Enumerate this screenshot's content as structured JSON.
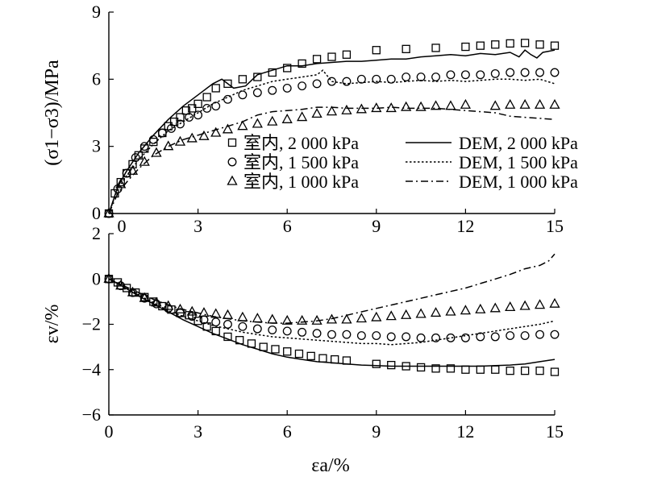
{
  "chart_data": [
    {
      "panel": "top",
      "type": "line",
      "ylabel": "(σ1−σ3)/MPa",
      "xlim": [
        0,
        15
      ],
      "ylim": [
        0,
        9
      ],
      "x_ticks": [
        0,
        3,
        6,
        9,
        12,
        15
      ],
      "x_tick_labels": [
        "0",
        "3",
        "6",
        "9",
        "12",
        "15"
      ],
      "y_ticks": [
        0,
        3,
        6,
        9
      ],
      "y_tick_labels": [
        "0",
        "3",
        "6",
        "9"
      ],
      "legend": [
        {
          "label": "室内, 2 000 kPa",
          "marker": "square"
        },
        {
          "label": "室内, 1 500 kPa",
          "marker": "circle"
        },
        {
          "label": "室内, 1 000 kPa",
          "marker": "triangle"
        },
        {
          "label": "DEM, 2 000 kPa",
          "line": "solid"
        },
        {
          "label": "DEM, 1 500 kPa",
          "line": "dotted"
        },
        {
          "label": "DEM, 1 000 kPa",
          "line": "dashdot"
        }
      ],
      "series": [
        {
          "name": "室内, 2 000 kPa",
          "kind": "marker",
          "marker": "square",
          "x": [
            0,
            0.2,
            0.4,
            0.6,
            0.8,
            1.0,
            1.2,
            1.5,
            1.8,
            2.0,
            2.2,
            2.4,
            2.6,
            2.8,
            3.0,
            3.3,
            3.6,
            4.0,
            4.5,
            5.0,
            5.5,
            6.0,
            6.5,
            7.0,
            7.5,
            8.0,
            9.0,
            10.0,
            11.0,
            12.0,
            12.5,
            13.0,
            13.5,
            14.0,
            14.5,
            15.0
          ],
          "y": [
            0,
            0.9,
            1.4,
            1.8,
            2.2,
            2.6,
            2.9,
            3.2,
            3.6,
            3.9,
            4.1,
            4.3,
            4.6,
            4.7,
            4.9,
            5.2,
            5.6,
            5.8,
            6.0,
            6.1,
            6.3,
            6.5,
            6.7,
            6.9,
            7.0,
            7.1,
            7.3,
            7.35,
            7.4,
            7.45,
            7.5,
            7.55,
            7.6,
            7.62,
            7.55,
            7.5
          ]
        },
        {
          "name": "室内, 1 500 kPa",
          "kind": "marker",
          "marker": "circle",
          "x": [
            0,
            0.3,
            0.6,
            0.9,
            1.2,
            1.5,
            1.8,
            2.1,
            2.4,
            2.7,
            3.0,
            3.3,
            3.6,
            4.0,
            4.5,
            5.0,
            5.5,
            6.0,
            6.5,
            7.0,
            7.5,
            8.0,
            8.5,
            9.0,
            9.5,
            10.0,
            10.5,
            11.0,
            11.5,
            12.0,
            12.5,
            13.0,
            13.5,
            14.0,
            14.5,
            15.0
          ],
          "y": [
            0,
            1.1,
            1.8,
            2.5,
            3.0,
            3.3,
            3.6,
            3.8,
            4.0,
            4.3,
            4.4,
            4.7,
            4.8,
            5.1,
            5.3,
            5.4,
            5.5,
            5.6,
            5.7,
            5.8,
            5.9,
            5.9,
            6.0,
            6.0,
            6.0,
            6.1,
            6.1,
            6.1,
            6.2,
            6.2,
            6.2,
            6.25,
            6.3,
            6.3,
            6.3,
            6.3
          ]
        },
        {
          "name": "室内, 1 000 kPa",
          "kind": "marker",
          "marker": "triangle",
          "x": [
            0,
            0.4,
            0.8,
            1.2,
            1.6,
            2.0,
            2.4,
            2.8,
            3.2,
            3.6,
            4.0,
            4.5,
            5.0,
            5.5,
            6.0,
            6.5,
            7.0,
            7.5,
            8.0,
            8.5,
            9.0,
            9.5,
            10.0,
            10.5,
            11.0,
            11.5,
            12.0,
            13.0,
            13.5,
            14.0,
            14.5,
            15.0
          ],
          "y": [
            0,
            1.3,
            1.9,
            2.3,
            2.7,
            3.0,
            3.2,
            3.35,
            3.45,
            3.6,
            3.75,
            3.9,
            4.0,
            4.1,
            4.2,
            4.3,
            4.45,
            4.55,
            4.6,
            4.65,
            4.7,
            4.7,
            4.75,
            4.75,
            4.8,
            4.8,
            4.85,
            4.8,
            4.85,
            4.85,
            4.85,
            4.85
          ]
        },
        {
          "name": "DEM, 2 000 kPa",
          "kind": "line",
          "dash": "solid",
          "x": [
            0,
            0.3,
            0.6,
            1.0,
            1.5,
            2.0,
            2.5,
            3.0,
            3.5,
            3.8,
            4.2,
            4.6,
            5.0,
            5.5,
            6.0,
            6.5,
            7.0,
            7.5,
            8.0,
            8.5,
            9.0,
            9.5,
            10.0,
            10.5,
            11.0,
            11.5,
            12.0,
            12.5,
            13.0,
            13.5,
            13.8,
            14.0,
            14.2,
            14.4,
            14.6,
            14.8,
            15.0
          ],
          "y": [
            0,
            1.2,
            1.9,
            2.7,
            3.5,
            4.2,
            4.8,
            5.3,
            5.8,
            6.0,
            5.6,
            5.7,
            6.2,
            6.4,
            6.6,
            6.6,
            6.7,
            6.75,
            6.8,
            6.8,
            6.85,
            6.9,
            6.9,
            7.0,
            7.05,
            7.1,
            7.05,
            7.15,
            7.1,
            7.2,
            7.0,
            7.3,
            7.1,
            6.95,
            7.2,
            7.25,
            7.3
          ]
        },
        {
          "name": "DEM, 1 500 kPa",
          "kind": "line",
          "dash": "dotted",
          "x": [
            0,
            0.3,
            0.6,
            1.0,
            1.5,
            2.0,
            2.5,
            3.0,
            3.5,
            4.0,
            4.5,
            5.0,
            5.5,
            6.0,
            6.5,
            7.0,
            7.2,
            7.5,
            8.0,
            8.5,
            9.0,
            9.5,
            10.0,
            10.5,
            11.0,
            11.5,
            12.0,
            12.5,
            13.0,
            13.5,
            14.0,
            14.5,
            15.0
          ],
          "y": [
            0,
            1.1,
            1.7,
            2.4,
            3.1,
            3.7,
            4.1,
            4.5,
            4.9,
            5.2,
            5.5,
            5.7,
            5.9,
            6.0,
            6.1,
            6.2,
            6.4,
            5.9,
            5.8,
            5.85,
            5.9,
            5.85,
            5.9,
            5.95,
            5.9,
            5.95,
            5.9,
            5.95,
            6.0,
            6.0,
            5.95,
            6.0,
            5.8
          ]
        },
        {
          "name": "DEM, 1 000 kPa",
          "kind": "line",
          "dash": "dashdot",
          "x": [
            0,
            0.3,
            0.6,
            1.0,
            1.5,
            2.0,
            2.5,
            3.0,
            3.5,
            4.0,
            4.5,
            5.0,
            5.5,
            6.0,
            6.5,
            7.0,
            7.5,
            8.0,
            8.5,
            9.0,
            9.5,
            10.0,
            10.5,
            11.0,
            11.5,
            12.0,
            12.5,
            13.0,
            13.5,
            14.0,
            14.5,
            15.0
          ],
          "y": [
            0,
            0.9,
            1.4,
            2.0,
            2.6,
            3.0,
            3.3,
            3.5,
            3.7,
            3.9,
            4.1,
            4.4,
            4.55,
            4.6,
            4.65,
            4.75,
            4.75,
            4.7,
            4.7,
            4.7,
            4.75,
            4.7,
            4.7,
            4.7,
            4.65,
            4.6,
            4.55,
            4.5,
            4.35,
            4.3,
            4.25,
            4.2
          ]
        }
      ]
    },
    {
      "panel": "bottom",
      "type": "line",
      "xlabel": "εa/%",
      "ylabel": "εv/%",
      "xlim": [
        0,
        15
      ],
      "ylim": [
        -6,
        2
      ],
      "x_ticks": [
        0,
        3,
        6,
        9,
        12,
        15
      ],
      "x_tick_labels": [
        "0",
        "3",
        "6",
        "9",
        "12",
        "15"
      ],
      "x_ticks_top": [
        0,
        3,
        6,
        9,
        12,
        15
      ],
      "x_tick_labels_top": [
        "0",
        "3",
        "6",
        "9",
        "12",
        "15"
      ],
      "y_ticks": [
        -6,
        -4,
        -2,
        0,
        2
      ],
      "y_tick_labels": [
        "−6",
        "−4",
        "−2",
        "0",
        "2"
      ],
      "series": [
        {
          "name": "室内, 2 000 kPa",
          "kind": "marker",
          "marker": "square",
          "x": [
            0,
            0.3,
            0.6,
            0.9,
            1.2,
            1.5,
            1.8,
            2.1,
            2.4,
            2.7,
            3.0,
            3.3,
            3.6,
            4.0,
            4.4,
            4.8,
            5.2,
            5.6,
            6.0,
            6.4,
            6.8,
            7.2,
            7.6,
            8.0,
            9.0,
            9.5,
            10.0,
            10.5,
            11.0,
            11.5,
            12.0,
            12.5,
            13.0,
            13.5,
            14.0,
            14.5,
            15.0
          ],
          "y": [
            0,
            -0.15,
            -0.4,
            -0.6,
            -0.8,
            -1.0,
            -1.2,
            -1.35,
            -1.5,
            -1.6,
            -1.85,
            -2.1,
            -2.3,
            -2.55,
            -2.7,
            -2.85,
            -3.0,
            -3.1,
            -3.2,
            -3.3,
            -3.4,
            -3.5,
            -3.55,
            -3.6,
            -3.75,
            -3.8,
            -3.85,
            -3.9,
            -3.95,
            -3.95,
            -4.0,
            -4.0,
            -4.0,
            -4.05,
            -4.05,
            -4.05,
            -4.1
          ]
        },
        {
          "name": "室内, 1 500 kPa",
          "kind": "marker",
          "marker": "circle",
          "x": [
            0,
            0.4,
            0.8,
            1.2,
            1.6,
            2.0,
            2.4,
            2.8,
            3.2,
            3.6,
            4.0,
            4.5,
            5.0,
            5.5,
            6.0,
            6.5,
            7.0,
            7.5,
            8.0,
            8.5,
            9.0,
            9.5,
            10.0,
            10.5,
            11.0,
            11.5,
            12.0,
            12.5,
            13.0,
            13.5,
            14.0,
            14.5,
            15.0
          ],
          "y": [
            0,
            -0.3,
            -0.6,
            -0.85,
            -1.1,
            -1.3,
            -1.5,
            -1.65,
            -1.8,
            -1.9,
            -2.0,
            -2.1,
            -2.2,
            -2.25,
            -2.3,
            -2.35,
            -2.4,
            -2.45,
            -2.45,
            -2.5,
            -2.5,
            -2.55,
            -2.55,
            -2.6,
            -2.6,
            -2.6,
            -2.6,
            -2.55,
            -2.55,
            -2.5,
            -2.5,
            -2.45,
            -2.45
          ]
        },
        {
          "name": "室内, 1 000 kPa",
          "kind": "marker",
          "marker": "triangle",
          "x": [
            0,
            0.4,
            0.8,
            1.2,
            1.6,
            2.0,
            2.4,
            2.8,
            3.2,
            3.6,
            4.0,
            4.5,
            5.0,
            5.5,
            6.0,
            6.5,
            7.0,
            7.5,
            8.0,
            8.5,
            9.0,
            9.5,
            10.0,
            10.5,
            11.0,
            11.5,
            12.0,
            12.5,
            13.0,
            13.5,
            14.0,
            14.5,
            15.0
          ],
          "y": [
            0,
            -0.3,
            -0.6,
            -0.85,
            -1.05,
            -1.2,
            -1.35,
            -1.45,
            -1.5,
            -1.55,
            -1.6,
            -1.7,
            -1.75,
            -1.8,
            -1.85,
            -1.85,
            -1.85,
            -1.8,
            -1.8,
            -1.75,
            -1.7,
            -1.65,
            -1.6,
            -1.55,
            -1.5,
            -1.45,
            -1.4,
            -1.35,
            -1.3,
            -1.25,
            -1.2,
            -1.15,
            -1.1
          ]
        },
        {
          "name": "DEM, 2 000 kPa",
          "kind": "line",
          "dash": "solid",
          "x": [
            0,
            0.5,
            1.0,
            1.5,
            2.0,
            2.5,
            3.0,
            3.5,
            4.0,
            4.5,
            5.0,
            5.5,
            6.0,
            6.5,
            7.0,
            7.5,
            8.0,
            8.5,
            9.0,
            9.5,
            10.0,
            10.5,
            11.0,
            11.5,
            12.0,
            12.5,
            13.0,
            13.5,
            14.0,
            14.5,
            15.0
          ],
          "y": [
            0,
            -0.35,
            -0.75,
            -1.1,
            -1.45,
            -1.8,
            -2.1,
            -2.4,
            -2.65,
            -2.9,
            -3.1,
            -3.3,
            -3.45,
            -3.55,
            -3.65,
            -3.7,
            -3.75,
            -3.8,
            -3.82,
            -3.85,
            -3.85,
            -3.85,
            -3.85,
            -3.85,
            -3.85,
            -3.85,
            -3.82,
            -3.8,
            -3.75,
            -3.65,
            -3.55
          ]
        },
        {
          "name": "DEM, 1 500 kPa",
          "kind": "line",
          "dash": "dotted",
          "x": [
            0,
            0.5,
            1.0,
            1.5,
            2.0,
            2.5,
            3.0,
            3.5,
            4.0,
            4.5,
            5.0,
            5.5,
            6.0,
            6.5,
            7.0,
            7.5,
            8.0,
            8.5,
            9.0,
            9.5,
            10.0,
            10.5,
            11.0,
            11.5,
            12.0,
            12.5,
            13.0,
            13.5,
            14.0,
            14.5,
            15.0
          ],
          "y": [
            0,
            -0.3,
            -0.7,
            -1.05,
            -1.4,
            -1.65,
            -1.85,
            -2.05,
            -2.2,
            -2.35,
            -2.45,
            -2.55,
            -2.6,
            -2.65,
            -2.7,
            -2.75,
            -2.8,
            -2.85,
            -2.85,
            -2.9,
            -2.85,
            -2.8,
            -2.7,
            -2.6,
            -2.5,
            -2.4,
            -2.3,
            -2.2,
            -2.1,
            -2.0,
            -1.85
          ]
        },
        {
          "name": "DEM, 1 000 kPa",
          "kind": "line",
          "dash": "dashdot",
          "x": [
            0,
            0.5,
            1.0,
            1.5,
            2.0,
            2.5,
            3.0,
            3.5,
            4.0,
            4.5,
            5.0,
            5.5,
            6.0,
            6.5,
            7.0,
            7.5,
            8.0,
            8.5,
            9.0,
            9.5,
            10.0,
            10.5,
            11.0,
            11.5,
            12.0,
            12.5,
            13.0,
            13.5,
            14.0,
            14.5,
            14.8,
            15.0
          ],
          "y": [
            0,
            -0.3,
            -0.6,
            -0.9,
            -1.15,
            -1.35,
            -1.5,
            -1.65,
            -1.75,
            -1.85,
            -1.9,
            -1.95,
            -1.95,
            -1.9,
            -1.85,
            -1.75,
            -1.6,
            -1.45,
            -1.3,
            -1.15,
            -1.0,
            -0.85,
            -0.7,
            -0.55,
            -0.4,
            -0.2,
            0.0,
            0.2,
            0.45,
            0.6,
            0.8,
            1.1
          ]
        }
      ]
    }
  ]
}
